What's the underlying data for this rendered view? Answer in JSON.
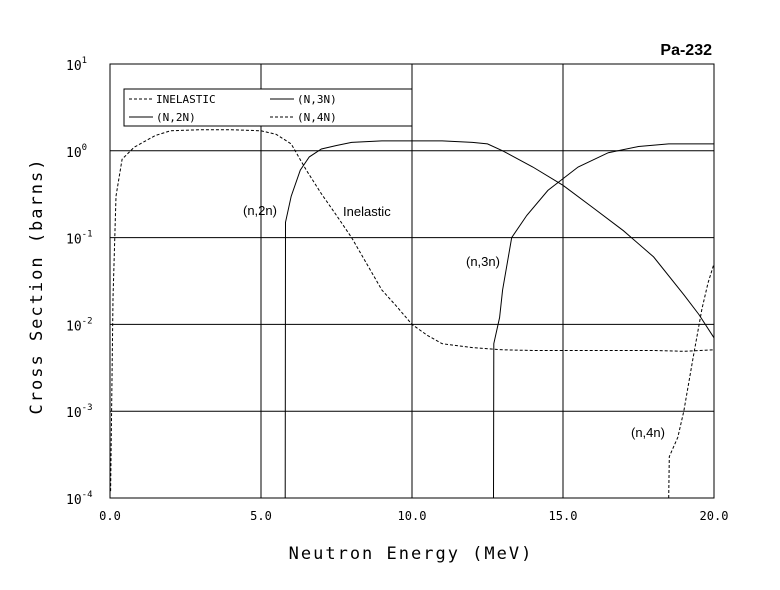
{
  "chart_data": {
    "type": "line",
    "title": "Pa-232",
    "xlabel": "Neutron Energy (MeV)",
    "ylabel": "Cross Section (barns)",
    "xlim": [
      0,
      20
    ],
    "ylim": [
      0.0001,
      10
    ],
    "yscale": "log",
    "grid": true,
    "x_ticks": [
      "0.0",
      "5.0",
      "10.0",
      "15.0",
      "20.0"
    ],
    "y_ticks": [
      {
        "base": "10",
        "exp": "-4"
      },
      {
        "base": "10",
        "exp": "-3"
      },
      {
        "base": "10",
        "exp": "-2"
      },
      {
        "base": "10",
        "exp": "-1"
      },
      {
        "base": "10",
        "exp": "0"
      },
      {
        "base": "10",
        "exp": "1"
      }
    ],
    "legend": {
      "placement": "top-left",
      "entries": [
        "INELASTIC",
        "(N,2N)",
        "(N,3N)",
        "(N,4N)"
      ]
    },
    "annotations": [
      "(n,2n)",
      "Inelastic",
      "(n,3n)",
      "(n,4n)"
    ],
    "series": [
      {
        "name": "INELASTIC",
        "dash": "dashed",
        "points": [
          [
            0.02,
            0.00012
          ],
          [
            0.1,
            0.02
          ],
          [
            0.2,
            0.3
          ],
          [
            0.4,
            0.8
          ],
          [
            0.8,
            1.1
          ],
          [
            1.5,
            1.5
          ],
          [
            2.0,
            1.7
          ],
          [
            3.0,
            1.75
          ],
          [
            4.0,
            1.75
          ],
          [
            5.0,
            1.7
          ],
          [
            5.5,
            1.55
          ],
          [
            6.0,
            1.2
          ],
          [
            6.5,
            0.6
          ],
          [
            7.0,
            0.32
          ],
          [
            7.5,
            0.18
          ],
          [
            8.0,
            0.1
          ],
          [
            8.5,
            0.05
          ],
          [
            9.0,
            0.025
          ],
          [
            9.5,
            0.016
          ],
          [
            10.0,
            0.01
          ],
          [
            10.5,
            0.0075
          ],
          [
            11.0,
            0.006
          ],
          [
            12.0,
            0.0054
          ],
          [
            13.0,
            0.0051
          ],
          [
            14.0,
            0.005
          ],
          [
            15.0,
            0.005
          ],
          [
            17.0,
            0.005
          ],
          [
            18.0,
            0.005
          ],
          [
            19.0,
            0.0049
          ],
          [
            20.0,
            0.0051
          ]
        ]
      },
      {
        "name": "(N,2N)",
        "dash": "solid",
        "points": [
          [
            5.8,
            0.0001
          ],
          [
            5.81,
            0.15
          ],
          [
            6.0,
            0.3
          ],
          [
            6.3,
            0.6
          ],
          [
            6.6,
            0.85
          ],
          [
            7.0,
            1.05
          ],
          [
            7.5,
            1.15
          ],
          [
            8.0,
            1.25
          ],
          [
            9.0,
            1.3
          ],
          [
            10.0,
            1.3
          ],
          [
            11.0,
            1.3
          ],
          [
            12.0,
            1.25
          ],
          [
            12.5,
            1.2
          ],
          [
            13.0,
            1.0
          ],
          [
            14.0,
            0.65
          ],
          [
            15.0,
            0.4
          ],
          [
            16.0,
            0.22
          ],
          [
            17.0,
            0.12
          ],
          [
            18.0,
            0.06
          ],
          [
            19.0,
            0.022
          ],
          [
            19.5,
            0.013
          ],
          [
            20.0,
            0.007
          ]
        ]
      },
      {
        "name": "(N,3N)",
        "dash": "solid",
        "points": [
          [
            12.7,
            0.0001
          ],
          [
            12.71,
            0.006
          ],
          [
            12.9,
            0.012
          ],
          [
            13.0,
            0.025
          ],
          [
            13.3,
            0.1
          ],
          [
            13.8,
            0.18
          ],
          [
            14.5,
            0.35
          ],
          [
            15.5,
            0.65
          ],
          [
            16.5,
            0.95
          ],
          [
            17.5,
            1.12
          ],
          [
            18.5,
            1.2
          ],
          [
            20.0,
            1.2
          ]
        ]
      },
      {
        "name": "(N,4N)",
        "dash": "dashed",
        "points": [
          [
            18.5,
            0.0001
          ],
          [
            18.52,
            0.0003
          ],
          [
            18.8,
            0.0005
          ],
          [
            19.0,
            0.001
          ],
          [
            19.3,
            0.004
          ],
          [
            19.6,
            0.015
          ],
          [
            19.8,
            0.03
          ],
          [
            20.0,
            0.05
          ]
        ]
      }
    ]
  }
}
